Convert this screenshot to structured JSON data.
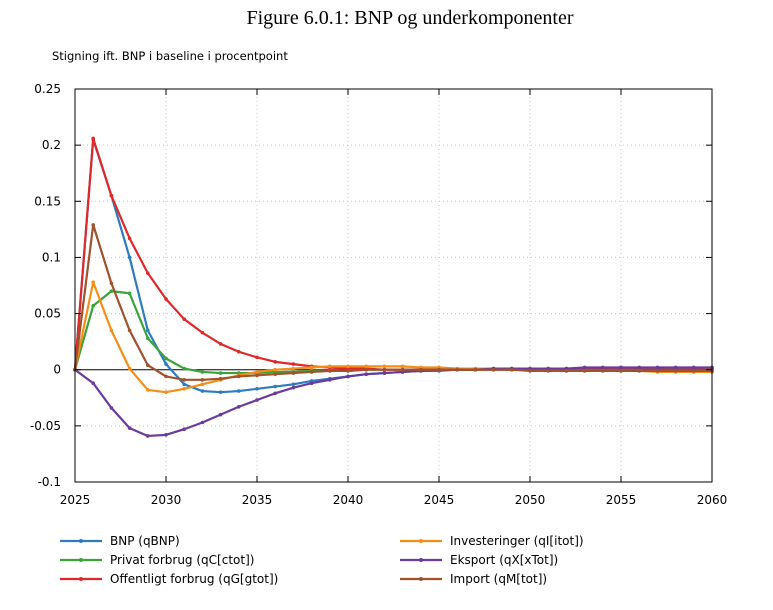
{
  "figure_title": "Figure 6.0.1: BNP og underkomponenter",
  "chart_data": {
    "type": "line",
    "title": "Figure 6.0.1: BNP og underkomponenter",
    "ylabel": "Stigning ift. BNP i baseline i procentpoint",
    "xlabel": "",
    "xlim": [
      2025,
      2060
    ],
    "ylim": [
      -0.1,
      0.25
    ],
    "x_ticks": [
      "2025",
      "2030",
      "2035",
      "2040",
      "2045",
      "2050",
      "2055",
      "2060"
    ],
    "y_ticks": [
      "0.25",
      "0.2",
      "0.15",
      "0.1",
      "0.05",
      "0",
      "-0.05",
      "-0.1"
    ],
    "grid": true,
    "legend_position": "bottom",
    "x": [
      2025,
      2026,
      2027,
      2028,
      2029,
      2030,
      2031,
      2032,
      2033,
      2034,
      2035,
      2036,
      2037,
      2038,
      2039,
      2040,
      2041,
      2042,
      2043,
      2044,
      2045,
      2046,
      2047,
      2048,
      2049,
      2050,
      2051,
      2052,
      2053,
      2054,
      2055,
      2056,
      2057,
      2058,
      2059,
      2060
    ],
    "series": [
      {
        "name": "BNP (qBNP)",
        "color": "#2e7bbf",
        "values": [
          0,
          0.205,
          0.155,
          0.1,
          0.035,
          0.005,
          -0.013,
          -0.019,
          -0.02,
          -0.019,
          -0.017,
          -0.015,
          -0.013,
          -0.01,
          -0.008,
          -0.006,
          -0.004,
          -0.003,
          -0.002,
          -0.001,
          -0.001,
          0,
          0,
          0.001,
          0.001,
          0.001,
          0.001,
          0.001,
          0.001,
          0.001,
          0.001,
          0.001,
          0.001,
          0.001,
          0.001,
          0.001
        ]
      },
      {
        "name": "Privat forbrug (qC[ctot])",
        "color": "#3aa33a",
        "values": [
          0,
          0.057,
          0.07,
          0.068,
          0.028,
          0.01,
          0.001,
          -0.002,
          -0.003,
          -0.003,
          -0.003,
          -0.002,
          -0.002,
          -0.001,
          -0.001,
          -0.001,
          0,
          0,
          0,
          0,
          0,
          0,
          0,
          0,
          0,
          0,
          0,
          0,
          0,
          0,
          0,
          0,
          0,
          0,
          0,
          0
        ]
      },
      {
        "name": "Offentligt forbrug (qG[gtot])",
        "color": "#e0282a",
        "values": [
          0,
          0.206,
          0.155,
          0.117,
          0.086,
          0.063,
          0.045,
          0.033,
          0.023,
          0.016,
          0.011,
          0.007,
          0.005,
          0.003,
          0.002,
          0.001,
          0.001,
          0,
          0,
          0,
          0,
          0,
          0,
          0,
          0,
          0,
          0,
          0,
          0,
          0,
          0,
          0,
          0,
          0,
          0,
          0
        ]
      },
      {
        "name": "Investeringer (qI[itot])",
        "color": "#f58e17",
        "values": [
          0,
          0.078,
          0.035,
          0.001,
          -0.018,
          -0.02,
          -0.017,
          -0.013,
          -0.009,
          -0.005,
          -0.002,
          0,
          0.001,
          0.002,
          0.003,
          0.003,
          0.003,
          0.003,
          0.003,
          0.002,
          0.002,
          0.001,
          0.001,
          0.001,
          0,
          0,
          0,
          -0.001,
          -0.001,
          -0.001,
          -0.001,
          -0.001,
          -0.002,
          -0.002,
          -0.002,
          -0.002
        ]
      },
      {
        "name": "Eksport (qX[xTot])",
        "color": "#6b3a9c",
        "values": [
          0,
          -0.012,
          -0.034,
          -0.052,
          -0.059,
          -0.058,
          -0.053,
          -0.047,
          -0.04,
          -0.033,
          -0.027,
          -0.021,
          -0.016,
          -0.012,
          -0.009,
          -0.006,
          -0.004,
          -0.003,
          -0.002,
          -0.001,
          0,
          0,
          0,
          0.001,
          0.001,
          0.001,
          0.001,
          0.001,
          0.002,
          0.002,
          0.002,
          0.002,
          0.002,
          0.002,
          0.002,
          0.002
        ]
      },
      {
        "name": "Import (qM[tot])",
        "color": "#a0522d",
        "values": [
          0,
          0.129,
          0.077,
          0.035,
          0.004,
          -0.006,
          -0.009,
          -0.009,
          -0.008,
          -0.006,
          -0.005,
          -0.004,
          -0.003,
          -0.002,
          -0.001,
          -0.001,
          0,
          0,
          0,
          0,
          0,
          0,
          0,
          0,
          0,
          -0.001,
          -0.001,
          -0.001,
          -0.001,
          -0.001,
          -0.001,
          -0.001,
          -0.001,
          -0.001,
          -0.001,
          -0.001
        ]
      }
    ]
  }
}
